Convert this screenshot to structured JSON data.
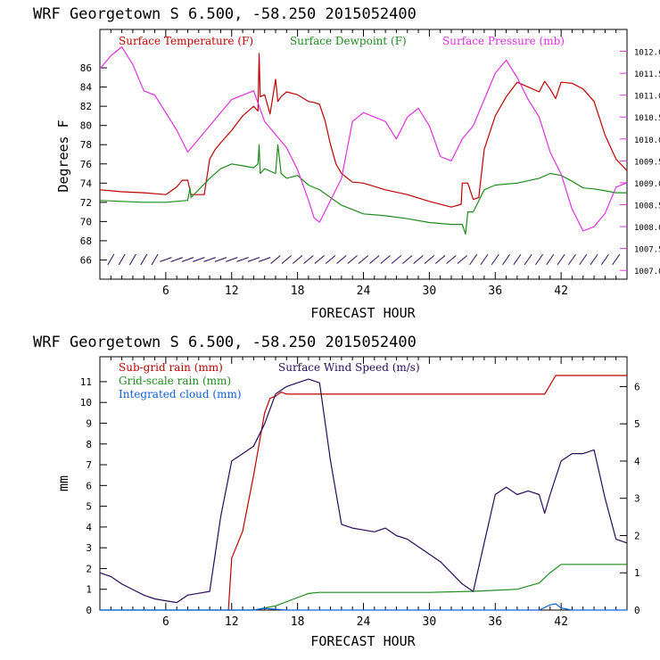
{
  "colors": {
    "temperature": "#c00000",
    "dewpoint": "#1f8a1f",
    "pressure": "#e030e0",
    "subgrid_rain": "#c00000",
    "grid_rain": "#1f8a1f",
    "cloud": "#1060e0",
    "wind": "#2a0a5a",
    "frame": "#000000"
  },
  "chart_data": [
    {
      "type": "line",
      "title": "WRF   Georgetown S   6.500, -58.250  2015052400",
      "xlabel": "FORECAST HOUR",
      "ylabel": "Degrees F",
      "xlim": [
        0,
        48
      ],
      "ylim": [
        64,
        90
      ],
      "y2lim": [
        1006.8,
        1012.5
      ],
      "xticks": [
        "6",
        "12",
        "18",
        "24",
        "30",
        "36",
        "42"
      ],
      "yticks": [
        "66",
        "68",
        "70",
        "72",
        "74",
        "76",
        "78",
        "80",
        "82",
        "84",
        "86"
      ],
      "y2ticks": [
        "1007.0",
        "1007.5",
        "1008.0",
        "1008.5",
        "1009.0",
        "1009.5",
        "1010.0",
        "1010.5",
        "1011.0",
        "1011.5",
        "1012.0"
      ],
      "series": [
        {
          "name": "Surface Temperature (F)",
          "axis": "left",
          "x": [
            0,
            2,
            4,
            6,
            7,
            7.5,
            8,
            8.3,
            8.5,
            9.5,
            10,
            10.5,
            11,
            12,
            13,
            14,
            14.4,
            14.5,
            14.6,
            15,
            15.5,
            16,
            16.2,
            16.5,
            17,
            18,
            19,
            19.5,
            20,
            20.5,
            21,
            21.5,
            22,
            23,
            24,
            26,
            28,
            30,
            32,
            32.9,
            33,
            33.5,
            34,
            34.5,
            35,
            36,
            37,
            38,
            39,
            40,
            40.5,
            41,
            41.5,
            42,
            43,
            44,
            45,
            46,
            47,
            48
          ],
          "y": [
            73.3,
            73.1,
            73,
            72.8,
            73.6,
            74.3,
            74.3,
            72.8,
            72.8,
            72.8,
            76.5,
            77.5,
            78.2,
            79.5,
            81,
            82,
            81.5,
            87.5,
            83,
            83.2,
            81.2,
            84.8,
            82.5,
            83,
            83.5,
            83.2,
            82.5,
            82.4,
            82.2,
            80.5,
            78,
            76,
            75,
            74.1,
            74,
            73.3,
            72.8,
            72.1,
            71.5,
            71.8,
            74,
            74,
            72.3,
            72.5,
            77.5,
            81,
            83,
            84.5,
            84,
            83.5,
            84.6,
            83.8,
            82.8,
            84.5,
            84.4,
            83.8,
            82.5,
            79,
            76.5,
            75.3
          ]
        },
        {
          "name": "Surface Dewpoint (F)",
          "axis": "left",
          "x": [
            0,
            2,
            4,
            6,
            8,
            8.2,
            8.3,
            10,
            11,
            12,
            13,
            14,
            14.4,
            14.5,
            14.6,
            15,
            16,
            16.2,
            16.5,
            17,
            18,
            19,
            20,
            21,
            22,
            24,
            26,
            28,
            30,
            32,
            33,
            33.3,
            33.5,
            34,
            35,
            36,
            38,
            40,
            41,
            42,
            43,
            44,
            45,
            46,
            47,
            48
          ],
          "y": [
            72.2,
            72.1,
            72,
            72,
            72.2,
            73.5,
            72.5,
            74.5,
            75.5,
            76,
            75.8,
            75.6,
            76,
            78,
            75,
            75.5,
            75,
            78,
            75,
            74.5,
            74.8,
            73.8,
            73.3,
            72.5,
            71.7,
            70.8,
            70.6,
            70.3,
            69.9,
            69.7,
            69.7,
            68.7,
            71,
            71,
            73.3,
            73.8,
            74,
            74.5,
            75,
            74.8,
            74.2,
            73.5,
            73.4,
            73.2,
            73,
            73
          ]
        },
        {
          "name": "Surface Pressure (mb)",
          "axis": "right",
          "x": [
            0,
            1,
            2,
            3,
            4,
            5,
            6,
            7,
            8,
            9,
            10,
            11,
            12,
            13,
            14,
            15,
            16,
            17,
            18,
            19,
            19.5,
            20,
            21,
            22,
            23,
            24,
            25,
            26,
            27,
            28,
            29,
            30,
            31,
            32,
            33,
            34,
            35,
            36,
            37,
            38,
            39,
            40,
            41,
            42,
            43,
            44,
            45,
            46,
            47,
            48
          ],
          "y": [
            1011.6,
            1011.9,
            1012.1,
            1011.7,
            1011.1,
            1011.0,
            1010.6,
            1010.2,
            1009.7,
            1010.0,
            1010.3,
            1010.6,
            1010.9,
            1011.0,
            1011.1,
            1010.4,
            1010.1,
            1009.8,
            1009.3,
            1008.6,
            1008.2,
            1008.1,
            1008.6,
            1009.1,
            1010.4,
            1010.6,
            1010.5,
            1010.4,
            1010.0,
            1010.5,
            1010.7,
            1010.3,
            1009.6,
            1009.5,
            1010.0,
            1010.3,
            1010.9,
            1011.5,
            1011.8,
            1011.4,
            1010.9,
            1010.5,
            1009.7,
            1009.2,
            1008.4,
            1007.9,
            1008.0,
            1008.3,
            1008.9,
            1009.0
          ]
        }
      ]
    },
    {
      "type": "line",
      "title": "WRF   Georgetown S   6.500, -58.250  2015052400",
      "xlabel": "FORECAST HOUR",
      "ylabel": "mm",
      "xlim": [
        0,
        48
      ],
      "ylim": [
        0,
        12.2
      ],
      "y2lim": [
        0,
        6.8
      ],
      "xticks": [
        "6",
        "12",
        "18",
        "24",
        "30",
        "36",
        "42"
      ],
      "yticks": [
        "0",
        "1",
        "2",
        "3",
        "4",
        "5",
        "6",
        "7",
        "8",
        "9",
        "10",
        "11"
      ],
      "y2ticks": [
        "0",
        "1",
        "2",
        "3",
        "4",
        "5",
        "6"
      ],
      "series": [
        {
          "name": "Sub-grid rain (mm)",
          "axis": "left",
          "x": [
            11.7,
            12,
            13,
            14,
            15,
            15.5,
            16,
            16.5,
            17,
            17.5,
            40.5,
            41.5,
            48
          ],
          "y": [
            0,
            2.5,
            3.8,
            6.5,
            9.5,
            10.2,
            10.3,
            10.5,
            10.4,
            10.4,
            10.4,
            11.3,
            11.3
          ]
        },
        {
          "name": "Grid-scale rain (mm)",
          "axis": "left",
          "x": [
            0,
            14,
            16,
            18,
            19,
            20,
            30,
            34,
            38,
            40,
            41,
            42,
            48
          ],
          "y": [
            0,
            0,
            0.2,
            0.6,
            0.8,
            0.85,
            0.85,
            0.9,
            1,
            1.3,
            1.8,
            2.2,
            2.2
          ]
        },
        {
          "name": "Integrated cloud (mm)",
          "axis": "left",
          "x": [
            0,
            14,
            15,
            16,
            17,
            40,
            41,
            41.5,
            42,
            43,
            48
          ],
          "y": [
            0,
            0,
            0.08,
            0.04,
            0,
            0,
            0.25,
            0.3,
            0.1,
            0,
            0
          ]
        },
        {
          "name": "Surface Wind Speed (m/s)",
          "axis": "right",
          "x": [
            0,
            1,
            2,
            3,
            4,
            5,
            6,
            7,
            8,
            9,
            10,
            10.5,
            11,
            12,
            13,
            14,
            15,
            16,
            17,
            18,
            19,
            20,
            21,
            22,
            23,
            24,
            25,
            26,
            27,
            28,
            29,
            30,
            31,
            32,
            33,
            34,
            35,
            36,
            37,
            38,
            39,
            40,
            40.5,
            41,
            42,
            43,
            44,
            45,
            46,
            47,
            48
          ],
          "y": [
            1.0,
            0.9,
            0.7,
            0.55,
            0.4,
            0.3,
            0.25,
            0.2,
            0.4,
            0.45,
            0.5,
            1.5,
            2.5,
            4.0,
            4.2,
            4.4,
            5.0,
            5.8,
            6.0,
            6.1,
            6.2,
            6.1,
            4.0,
            2.3,
            2.2,
            2.15,
            2.1,
            2.2,
            2.0,
            1.9,
            1.7,
            1.5,
            1.3,
            1.0,
            0.7,
            0.5,
            1.8,
            3.1,
            3.3,
            3.1,
            3.2,
            3.1,
            2.6,
            3.1,
            4.0,
            4.2,
            4.2,
            4.3,
            3.0,
            1.9,
            1.8
          ]
        }
      ]
    }
  ]
}
